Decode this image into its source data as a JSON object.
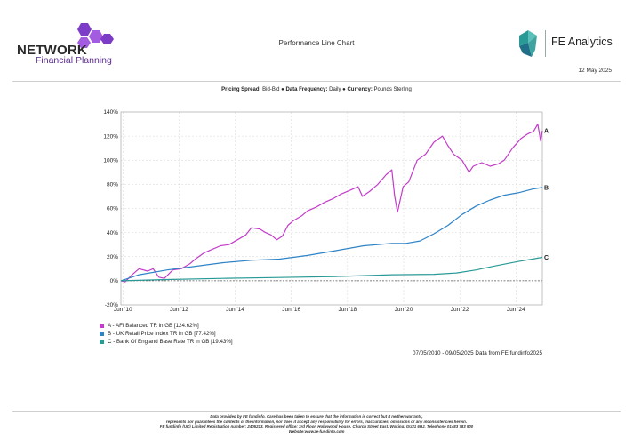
{
  "branding": {
    "left_word": "NETWORK",
    "left_sub": "Financial Planning",
    "right_name": "FE Analytics",
    "accent": "#7d3cc8",
    "accent_light": "#a35ce0"
  },
  "header": {
    "title": "Performance Line Chart",
    "date": "12 May 2025"
  },
  "params": {
    "spread_label": "Pricing Spread:",
    "spread_value": "Bid-Bid",
    "freq_label": "Data Frequency:",
    "freq_value": "Daily",
    "currency_label": "Currency:",
    "currency_value": "Pounds Sterling",
    "separator": "●"
  },
  "chart_data": {
    "type": "line",
    "ylim": [
      -20,
      140
    ],
    "yticks": [
      -20,
      0,
      20,
      40,
      60,
      80,
      100,
      120,
      140
    ],
    "ytick_labels": [
      "-20%",
      "0%",
      "20%",
      "40%",
      "60%",
      "80%",
      "100%",
      "120%",
      "140%"
    ],
    "xlim": [
      2010.35,
      2025.36
    ],
    "xticks": [
      2010.42,
      2012.42,
      2014.42,
      2016.42,
      2018.42,
      2020.42,
      2022.42,
      2024.42
    ],
    "xtick_labels": [
      "Jun '10",
      "Jun '12",
      "Jun '14",
      "Jun '16",
      "Jun '18",
      "Jun '20",
      "Jun '22",
      "Jun '24"
    ],
    "grid": true,
    "series": [
      {
        "name": "A - AFI Balanced TR in GB [124.62%]",
        "tag": "A",
        "color": "#c23cc9",
        "x": [
          2010.35,
          2010.5,
          2010.75,
          2011.0,
          2011.3,
          2011.5,
          2011.7,
          2011.9,
          2012.2,
          2012.5,
          2012.8,
          2013.0,
          2013.3,
          2013.6,
          2013.9,
          2014.2,
          2014.5,
          2014.8,
          2015.0,
          2015.3,
          2015.5,
          2015.7,
          2015.9,
          2016.1,
          2016.3,
          2016.5,
          2016.8,
          2017.0,
          2017.3,
          2017.6,
          2017.9,
          2018.2,
          2018.5,
          2018.8,
          2018.95,
          2019.2,
          2019.5,
          2019.8,
          2020.0,
          2020.1,
          2020.2,
          2020.4,
          2020.6,
          2020.9,
          2021.2,
          2021.5,
          2021.8,
          2022.0,
          2022.2,
          2022.5,
          2022.75,
          2022.9,
          2023.2,
          2023.5,
          2023.8,
          2024.0,
          2024.3,
          2024.6,
          2024.85,
          2025.05,
          2025.2,
          2025.3,
          2025.36
        ],
        "y": [
          0,
          -1,
          5,
          10,
          8,
          10,
          3,
          2,
          9,
          10,
          14,
          18,
          23,
          26,
          29,
          30,
          34,
          38,
          44,
          43,
          40,
          38,
          34,
          37,
          46,
          50,
          54,
          58,
          61,
          65,
          68,
          72,
          75,
          78,
          70,
          74,
          80,
          88,
          92,
          70,
          57,
          78,
          82,
          100,
          105,
          115,
          120,
          112,
          105,
          100,
          90,
          95,
          98,
          95,
          97,
          100,
          110,
          118,
          122,
          124,
          130,
          116,
          124.62
        ]
      },
      {
        "name": "B - UK Retail Price Index TR in GB [77.42%]",
        "tag": "B",
        "color": "#2e83c6",
        "x": [
          2010.35,
          2011.0,
          2012.0,
          2013.0,
          2014.0,
          2015.0,
          2016.0,
          2017.0,
          2018.0,
          2019.0,
          2020.0,
          2020.5,
          2021.0,
          2021.5,
          2022.0,
          2022.5,
          2023.0,
          2023.5,
          2024.0,
          2024.5,
          2025.0,
          2025.36
        ],
        "y": [
          0,
          5,
          9,
          12,
          15,
          17,
          18,
          21,
          25,
          29,
          31,
          31,
          33,
          39,
          46,
          55,
          62,
          67,
          71,
          73,
          76,
          77.42
        ]
      },
      {
        "name": "C - Bank Of England Base Rate TR in GB [19.43%]",
        "tag": "C",
        "color": "#2a9a96",
        "x": [
          2010.35,
          2012.0,
          2014.0,
          2016.0,
          2018.0,
          2020.0,
          2021.5,
          2022.3,
          2023.0,
          2023.5,
          2024.0,
          2024.5,
          2025.0,
          2025.36
        ],
        "y": [
          0,
          1,
          2,
          2.7,
          3.5,
          5,
          5.4,
          6.5,
          9,
          11.5,
          13.8,
          16,
          18,
          19.43
        ]
      }
    ]
  },
  "source_note": "07/05/2010 - 09/05/2025 Data from FE fundinfo2025",
  "disclaimer": {
    "line1": "Data provided by FE fundinfo. Care has been taken to ensure that the information is correct but it neither warrants,",
    "line2": "represents nor guarantees the contents of the information, nor does it accept any responsibility for errors, inaccuracies, omissions or any inconsistencies herein.",
    "line3": "FE fundinfo (UK) Limited Registration number: 2405213. Registered office: 3rd Floor, Hollywood House, Church Street East, Woking, GU21 6HJ. Telephone 01483 783 900",
    "line4": "Website:www.fe-fundinfo.com"
  }
}
